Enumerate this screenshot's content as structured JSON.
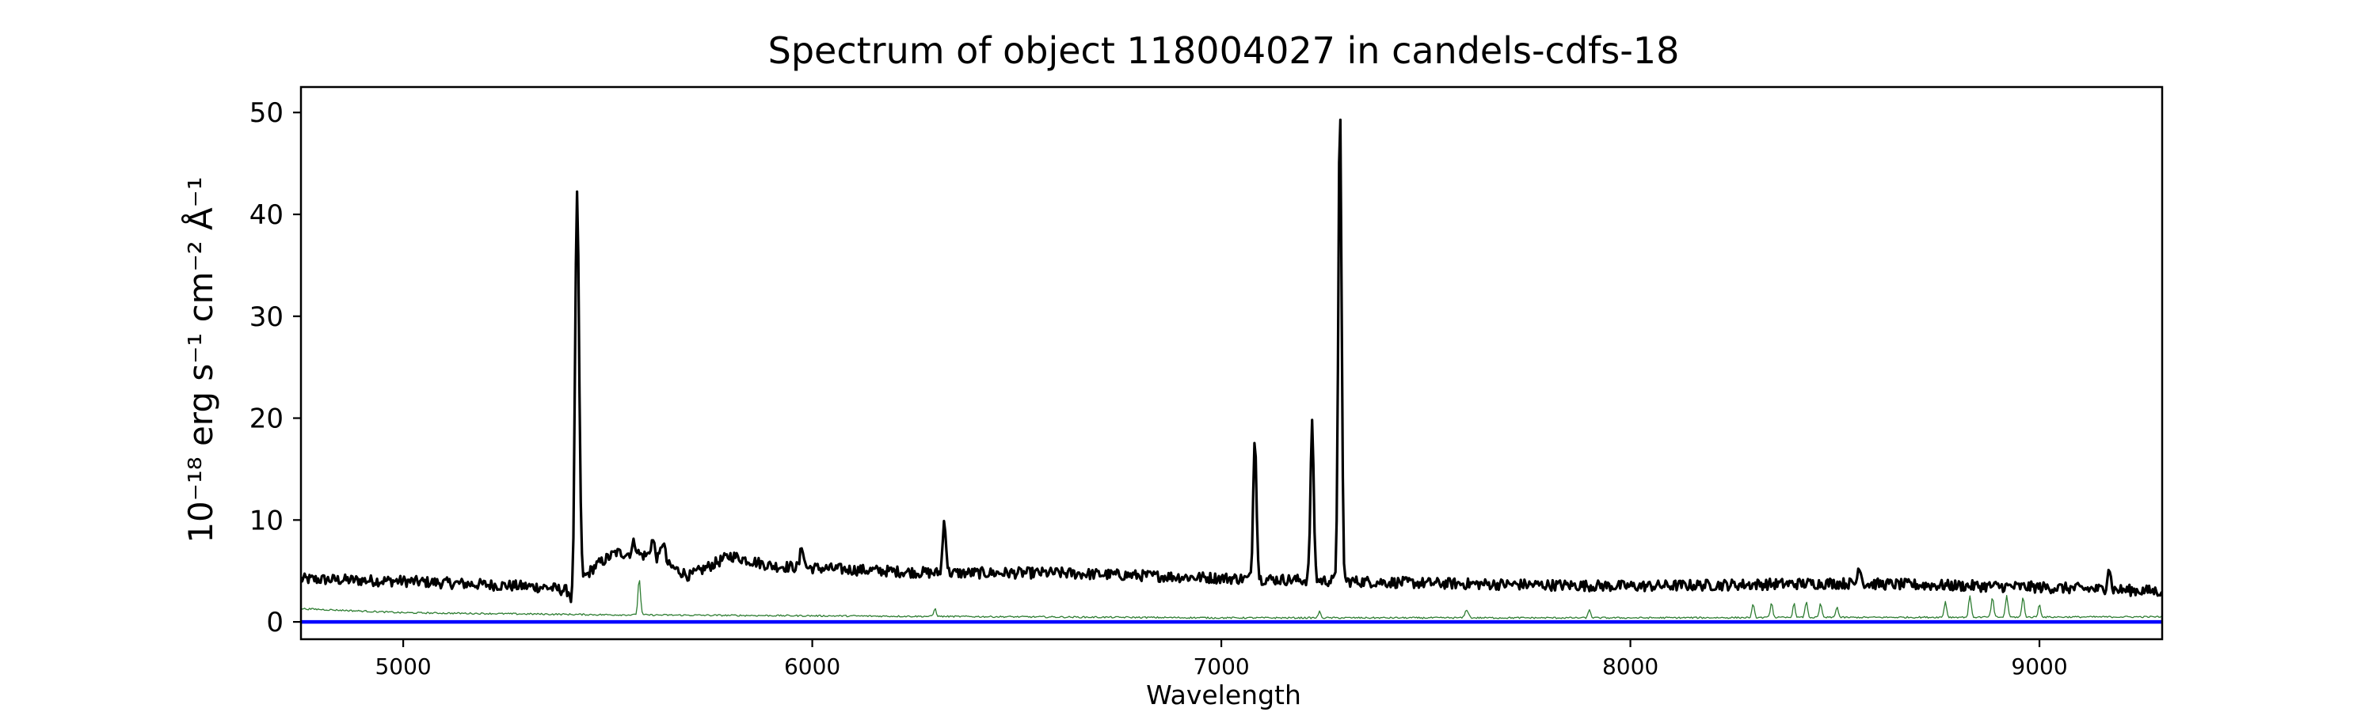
{
  "chart_data": {
    "type": "line",
    "title": "Spectrum of object 118004027 in candels-cdfs-18",
    "xlabel": "Wavelength",
    "ylabel": "10⁻¹⁸ erg s⁻¹ cm⁻² Å⁻¹",
    "xlim": [
      4750,
      9300
    ],
    "ylim": [
      -1.7,
      52.5
    ],
    "xticks": [
      5000,
      6000,
      7000,
      8000,
      9000
    ],
    "yticks": [
      0,
      10,
      20,
      30,
      40,
      50
    ],
    "grid": false,
    "series": [
      {
        "color": "#000000",
        "continuum": [
          [
            4750,
            4.2
          ],
          [
            5000,
            4.0
          ],
          [
            5350,
            3.4
          ],
          [
            5410,
            3.0
          ],
          [
            5470,
            5.5
          ],
          [
            5520,
            6.8
          ],
          [
            5600,
            6.5
          ],
          [
            5700,
            4.5
          ],
          [
            5800,
            6.5
          ],
          [
            5900,
            5.5
          ],
          [
            6050,
            5.2
          ],
          [
            6300,
            4.8
          ],
          [
            6600,
            4.8
          ],
          [
            7000,
            4.3
          ],
          [
            7500,
            3.8
          ],
          [
            8000,
            3.5
          ],
          [
            8500,
            3.8
          ],
          [
            9000,
            3.4
          ],
          [
            9300,
            3.0
          ]
        ],
        "features": [
          {
            "x": 5425,
            "peak": 41.8,
            "width": 5
          },
          {
            "x": 5415,
            "peak": 0.8,
            "width": 4
          },
          {
            "x": 5565,
            "peak": 7.8,
            "width": 5
          },
          {
            "x": 5610,
            "peak": 8.0,
            "width": 5
          },
          {
            "x": 5635,
            "peak": 7.9,
            "width": 5
          },
          {
            "x": 5975,
            "peak": 7.5,
            "width": 4
          },
          {
            "x": 6323,
            "peak": 10.0,
            "width": 4
          },
          {
            "x": 7082,
            "peak": 18.4,
            "width": 4
          },
          {
            "x": 7222,
            "peak": 19.3,
            "width": 4
          },
          {
            "x": 7290,
            "peak": 50.2,
            "width": 4
          },
          {
            "x": 8560,
            "peak": 5.6,
            "width": 4
          },
          {
            "x": 9170,
            "peak": 5.4,
            "width": 4
          }
        ]
      },
      {
        "color": "#2e7d32",
        "continuum": [
          [
            4750,
            1.3
          ],
          [
            5000,
            0.9
          ],
          [
            5500,
            0.7
          ],
          [
            6000,
            0.6
          ],
          [
            7000,
            0.4
          ],
          [
            8000,
            0.4
          ],
          [
            9300,
            0.5
          ]
        ],
        "features": [
          {
            "x": 5577,
            "peak": 4.3,
            "width": 3
          },
          {
            "x": 6300,
            "peak": 1.3,
            "width": 3
          },
          {
            "x": 7240,
            "peak": 1.0,
            "width": 3
          },
          {
            "x": 7600,
            "peak": 1.2,
            "width": 4
          },
          {
            "x": 7900,
            "peak": 1.2,
            "width": 3
          },
          {
            "x": 8300,
            "peak": 1.7,
            "width": 3
          },
          {
            "x": 8345,
            "peak": 1.9,
            "width": 3
          },
          {
            "x": 8400,
            "peak": 1.8,
            "width": 3
          },
          {
            "x": 8430,
            "peak": 2.0,
            "width": 3
          },
          {
            "x": 8465,
            "peak": 1.8,
            "width": 3
          },
          {
            "x": 8505,
            "peak": 1.5,
            "width": 3
          },
          {
            "x": 8770,
            "peak": 2.0,
            "width": 3
          },
          {
            "x": 8830,
            "peak": 2.6,
            "width": 3
          },
          {
            "x": 8885,
            "peak": 2.4,
            "width": 3
          },
          {
            "x": 8920,
            "peak": 2.6,
            "width": 3
          },
          {
            "x": 8960,
            "peak": 2.4,
            "width": 3
          },
          {
            "x": 9000,
            "peak": 1.7,
            "width": 3
          }
        ]
      },
      {
        "color": "#0000ff",
        "points": [
          [
            4750,
            0
          ],
          [
            9300,
            0
          ]
        ]
      }
    ]
  }
}
